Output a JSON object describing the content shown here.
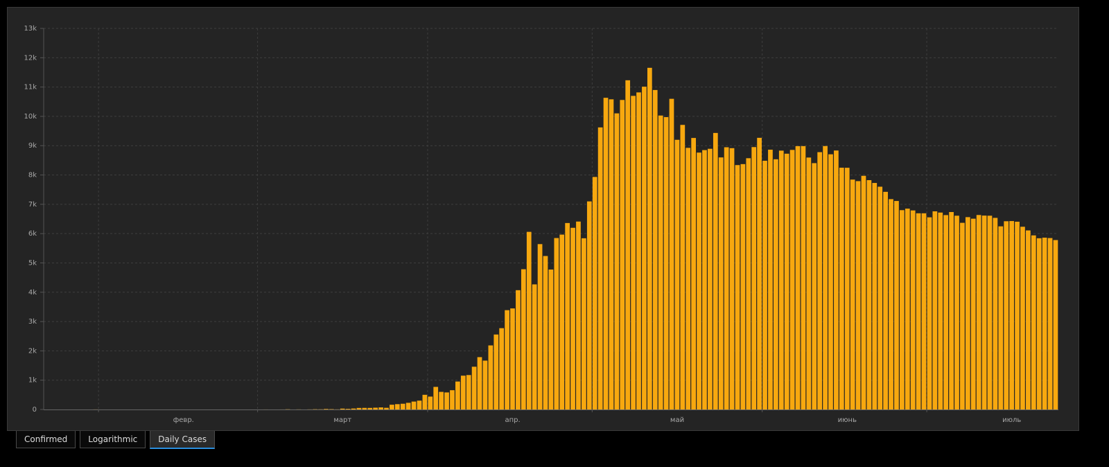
{
  "chart_data": {
    "type": "bar",
    "categories": [
      null,
      null,
      null,
      null,
      null,
      null,
      null,
      null,
      null,
      null,
      null,
      null,
      null,
      null,
      null,
      null,
      null,
      null,
      null,
      null,
      null,
      null,
      null,
      null,
      null,
      "февр.",
      null,
      null,
      null,
      null,
      null,
      null,
      null,
      null,
      null,
      null,
      null,
      null,
      null,
      null,
      null,
      null,
      null,
      null,
      null,
      null,
      null,
      null,
      null,
      null,
      null,
      null,
      null,
      null,
      "март",
      null,
      null,
      null,
      null,
      null,
      null,
      null,
      null,
      null,
      null,
      null,
      null,
      null,
      null,
      null,
      null,
      null,
      null,
      null,
      null,
      null,
      null,
      null,
      null,
      null,
      null,
      null,
      null,
      null,
      null,
      "апр.",
      null,
      null,
      null,
      null,
      null,
      null,
      null,
      null,
      null,
      null,
      null,
      null,
      null,
      null,
      null,
      null,
      null,
      null,
      null,
      null,
      null,
      null,
      null,
      null,
      null,
      null,
      null,
      null,
      null,
      "май",
      null,
      null,
      null,
      null,
      null,
      null,
      null,
      null,
      null,
      null,
      null,
      null,
      null,
      null,
      null,
      null,
      null,
      null,
      null,
      null,
      null,
      null,
      null,
      null,
      null,
      null,
      null,
      null,
      null,
      null,
      "июнь",
      null,
      null,
      null,
      null,
      null,
      null,
      null,
      null,
      null,
      null,
      null,
      null,
      null,
      null,
      null,
      null,
      null,
      null,
      null,
      null,
      null,
      null,
      null,
      null,
      null,
      null,
      null,
      null,
      null,
      "июль",
      null,
      null,
      null,
      null,
      null,
      null,
      null,
      null
    ],
    "values": [
      0,
      0,
      0,
      0,
      0,
      0,
      0,
      0,
      0,
      2,
      0,
      0,
      0,
      0,
      0,
      0,
      0,
      0,
      0,
      0,
      0,
      0,
      0,
      0,
      0,
      0,
      0,
      0,
      0,
      0,
      0,
      0,
      0,
      0,
      0,
      0,
      0,
      0,
      0,
      0,
      1,
      0,
      0,
      1,
      6,
      0,
      3,
      0,
      3,
      8,
      6,
      17,
      11,
      4,
      30,
      21,
      33,
      52,
      54,
      53,
      61,
      71,
      57,
      163,
      182,
      196,
      228,
      270,
      302,
      501,
      440,
      771,
      601,
      582,
      658,
      954,
      1154,
      1175,
      1459,
      1786,
      1667,
      2186,
      2558,
      2774,
      3388,
      3448,
      4070,
      4785,
      6060,
      4268,
      5642,
      5236,
      4774,
      5849,
      5966,
      6361,
      6198,
      6411,
      5841,
      7099,
      7933,
      9623,
      10633,
      10581,
      10102,
      10559,
      11231,
      10699,
      10817,
      11012,
      11656,
      10899,
      10028,
      9974,
      10598,
      9200,
      9709,
      8926,
      9263,
      8764,
      8849,
      8894,
      9434,
      8599,
      8946,
      8915,
      8338,
      8371,
      8572,
      8952,
      9268,
      8485,
      8863,
      8536,
      8831,
      8726,
      8855,
      8984,
      8985,
      8595,
      8404,
      8779,
      8987,
      8706,
      8835,
      8248,
      8246,
      7843,
      7790,
      7972,
      7824,
      7728,
      7600,
      7425,
      7176,
      7113,
      6800,
      6852,
      6791,
      6693,
      6693,
      6556,
      6760,
      6718,
      6632,
      6736,
      6611,
      6368,
      6562,
      6509,
      6635,
      6615,
      6611,
      6537,
      6248,
      6422,
      6428,
      6406,
      6234,
      6109,
      5940,
      5842,
      5862,
      5848,
      5780
    ],
    "color": "#f7a80f",
    "ylim": [
      0,
      13000
    ],
    "yticks": [
      0,
      {
        "value": 1000,
        "label": "1k"
      },
      {
        "value": 2000,
        "label": "2k"
      },
      {
        "value": 3000,
        "label": "3k"
      },
      {
        "value": 4000,
        "label": "4k"
      },
      {
        "value": 5000,
        "label": "5k"
      },
      {
        "value": 6000,
        "label": "6k"
      },
      {
        "value": 7000,
        "label": "7k"
      },
      {
        "value": 8000,
        "label": "8k"
      },
      {
        "value": 9000,
        "label": "9k"
      },
      {
        "value": 10000,
        "label": "10k"
      },
      {
        "value": 11000,
        "label": "11k"
      },
      {
        "value": 12000,
        "label": "12k"
      },
      {
        "value": 13000,
        "label": "13k"
      }
    ],
    "grid": true
  },
  "buttons": [
    "Confirmed",
    "Logarithmic",
    "Daily Cases"
  ]
}
